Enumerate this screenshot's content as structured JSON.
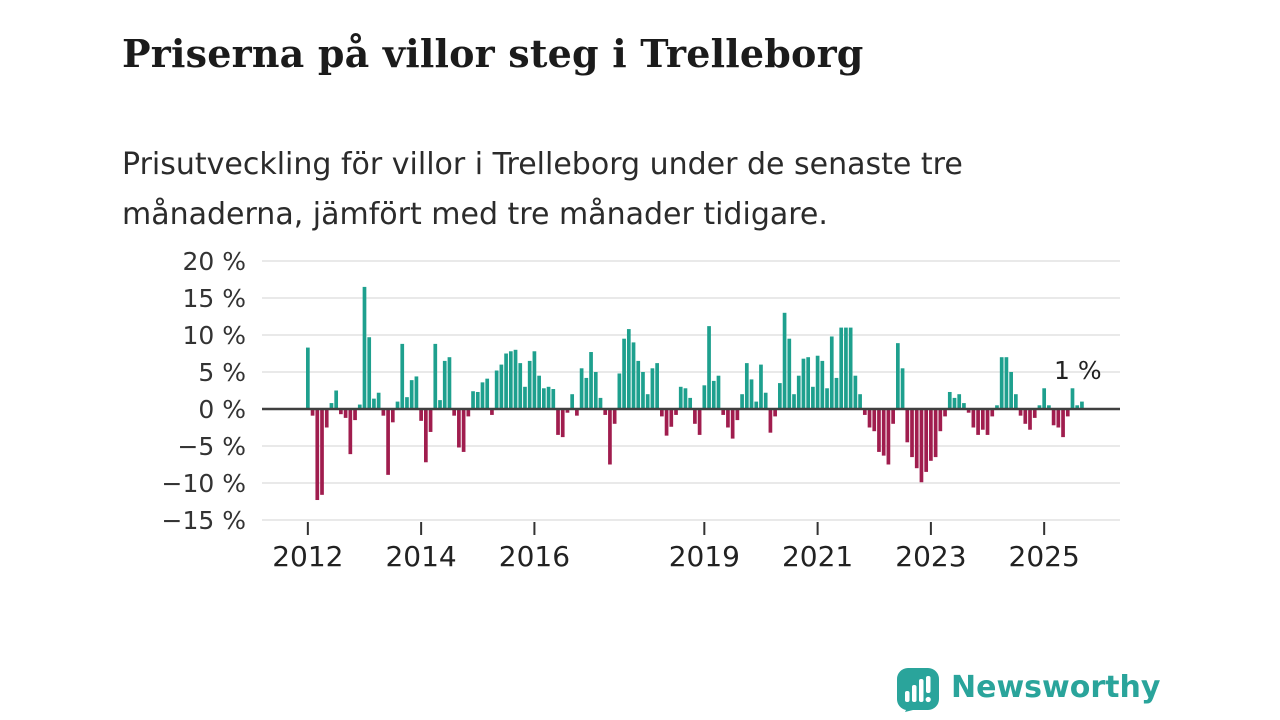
{
  "header": {
    "title": "Priserna på villor steg i Trelleborg",
    "subtitle": "Prisutveckling för villor i Trelleborg under de senaste tre månaderna, jämfört med tre månader tidigare."
  },
  "chart_data": {
    "type": "bar",
    "title": "Priserna på villor steg i Trelleborg",
    "unit": "%",
    "start_month": "2012-01",
    "frequency": "monthly",
    "ylim": [
      -15,
      20
    ],
    "grid": true,
    "values": [
      8.3,
      -0.9,
      -12.3,
      -11.6,
      -2.5,
      0.8,
      2.5,
      -0.7,
      -1.2,
      -6.1,
      -1.5,
      0.6,
      16.5,
      9.7,
      1.4,
      2.2,
      -0.9,
      -8.9,
      -1.8,
      1.0,
      8.8,
      1.6,
      3.9,
      4.4,
      -1.6,
      -7.2,
      -3.1,
      8.8,
      1.2,
      6.5,
      7.0,
      -0.9,
      -5.2,
      -5.8,
      -1.0,
      2.4,
      2.3,
      3.6,
      4.1,
      -0.8,
      5.2,
      6.0,
      7.5,
      7.8,
      8.0,
      6.2,
      3.0,
      6.5,
      7.8,
      4.5,
      2.8,
      3.0,
      2.7,
      -3.5,
      -3.8,
      -0.5,
      2.0,
      -0.9,
      5.5,
      4.2,
      7.7,
      5.0,
      1.5,
      -0.8,
      -7.5,
      -2.0,
      4.8,
      9.5,
      10.8,
      9.0,
      6.5,
      5.0,
      2.0,
      5.5,
      6.2,
      -1.0,
      -3.6,
      -2.4,
      -0.8,
      3.0,
      2.8,
      1.5,
      -2.0,
      -3.5,
      3.2,
      11.2,
      3.8,
      4.5,
      -0.8,
      -2.5,
      -4.0,
      -1.5,
      2.0,
      6.2,
      4.0,
      1.0,
      6.0,
      2.2,
      -3.2,
      -1.0,
      3.5,
      13.0,
      9.5,
      2.0,
      4.5,
      6.8,
      7.0,
      3.0,
      7.2,
      6.5,
      2.8,
      9.8,
      4.2,
      11.0,
      11.0,
      11.0,
      4.5,
      2.0,
      -0.8,
      -2.5,
      -3.0,
      -5.8,
      -6.3,
      -7.5,
      -2.0,
      8.9,
      5.5,
      -4.5,
      -6.5,
      -8.0,
      -9.9,
      -8.5,
      -7.0,
      -6.5,
      -3.0,
      -1.0,
      2.3,
      1.5,
      2.0,
      0.8,
      -0.5,
      -2.5,
      -3.5,
      -2.8,
      -3.5,
      -1.0,
      0.5,
      7.0,
      7.0,
      5.0,
      2.0,
      -0.9,
      -2.0,
      -2.8,
      -1.2,
      0.5,
      2.8,
      0.5,
      -2.2,
      -2.5,
      -3.8,
      -1.0,
      2.8,
      0.5,
      1.0
    ],
    "y_ticks": [
      {
        "value": 20,
        "label": "20 %"
      },
      {
        "value": 15,
        "label": "15 %"
      },
      {
        "value": 10,
        "label": "10 %"
      },
      {
        "value": 5,
        "label": "5 %"
      },
      {
        "value": 0,
        "label": "0 %"
      },
      {
        "value": -5,
        "label": "−5 %"
      },
      {
        "value": -10,
        "label": "−10 %"
      },
      {
        "value": -15,
        "label": "−15 %"
      }
    ],
    "x_ticks": [
      {
        "label": "2012",
        "month_index": 0
      },
      {
        "label": "2014",
        "month_index": 24
      },
      {
        "label": "2016",
        "month_index": 48
      },
      {
        "label": "2019",
        "month_index": 84
      },
      {
        "label": "2021",
        "month_index": 108
      },
      {
        "label": "2023",
        "month_index": 132
      },
      {
        "label": "2025",
        "month_index": 156
      }
    ],
    "annotation": {
      "text": "1 %",
      "value": 1
    },
    "colors": {
      "positive": "#1ea08e",
      "negative": "#a01d4e",
      "grid": "#e2e2e2",
      "zero_line": "#404040",
      "axis_text": "#333333",
      "annotation_text": "#222222"
    },
    "legend": "none"
  },
  "footer": {
    "brand": "Newsworthy",
    "brand_color": "#2aa49b",
    "logo": "newsworthy-logo"
  }
}
